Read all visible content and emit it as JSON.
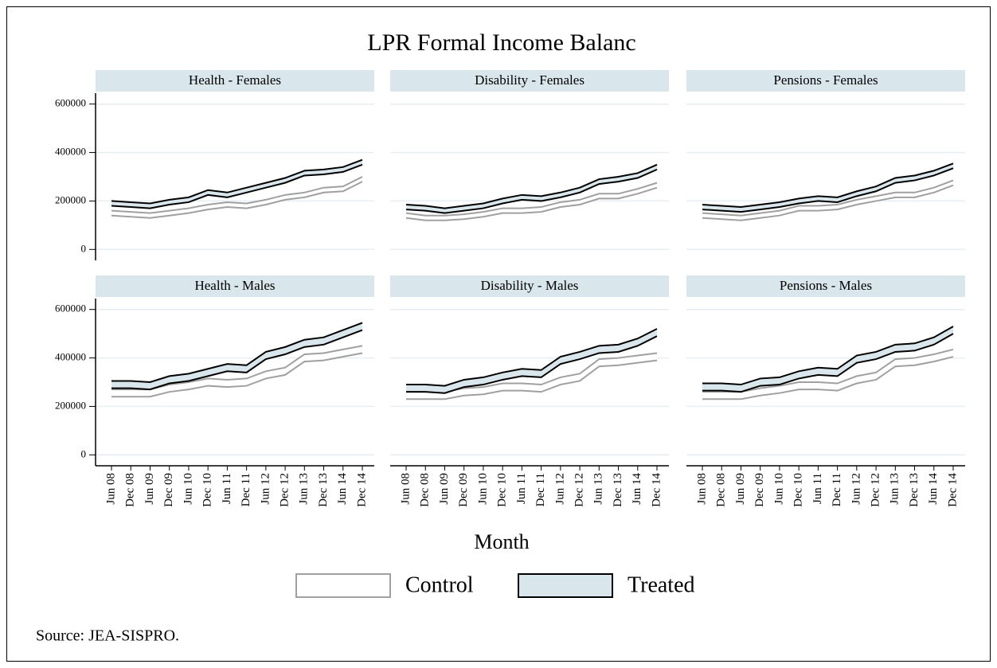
{
  "figure": {
    "title": "LPR Formal Income Balanc",
    "x_label": "Month",
    "source": "Source: JEA-SISPRO.",
    "categories": [
      "Jun 08",
      "Dec 08",
      "Jun 09",
      "Dec 09",
      "Jun 10",
      "Dec 10",
      "Jun 11",
      "Dec 11",
      "Jun 12",
      "Dec 12",
      "Jun 13",
      "Dec 13",
      "Jun 14",
      "Dec 14"
    ]
  },
  "chart_data": [
    {
      "type": "band",
      "title": "Health - Females",
      "ylim": [
        -45000,
        645000
      ],
      "yticks": [
        0,
        200000,
        400000,
        600000
      ],
      "grid": true,
      "series": [
        {
          "name": "Control",
          "color": "#a0a0a0",
          "fill": "#ffffff",
          "lower": [
            140000,
            135000,
            130000,
            140000,
            150000,
            165000,
            175000,
            170000,
            185000,
            205000,
            215000,
            235000,
            240000,
            280000
          ],
          "upper": [
            160000,
            155000,
            150000,
            160000,
            170000,
            185000,
            195000,
            190000,
            205000,
            225000,
            235000,
            255000,
            260000,
            300000
          ]
        },
        {
          "name": "Treated",
          "color": "#000000",
          "fill": "#d9e6ec",
          "lower": [
            180000,
            175000,
            170000,
            185000,
            195000,
            225000,
            215000,
            235000,
            255000,
            275000,
            305000,
            310000,
            320000,
            350000
          ],
          "upper": [
            200000,
            195000,
            190000,
            205000,
            215000,
            245000,
            235000,
            255000,
            275000,
            295000,
            325000,
            330000,
            340000,
            370000
          ]
        }
      ]
    },
    {
      "type": "band",
      "title": "Disability - Females",
      "ylim": [
        -45000,
        645000
      ],
      "yticks": [
        0,
        200000,
        400000,
        600000
      ],
      "grid": true,
      "series": [
        {
          "name": "Control",
          "color": "#a0a0a0",
          "fill": "#ffffff",
          "lower": [
            130000,
            120000,
            120000,
            125000,
            135000,
            150000,
            150000,
            155000,
            175000,
            185000,
            210000,
            210000,
            230000,
            255000
          ],
          "upper": [
            150000,
            140000,
            140000,
            145000,
            155000,
            170000,
            170000,
            175000,
            195000,
            205000,
            230000,
            230000,
            250000,
            275000
          ]
        },
        {
          "name": "Treated",
          "color": "#000000",
          "fill": "#d9e6ec",
          "lower": [
            165000,
            160000,
            150000,
            160000,
            170000,
            190000,
            205000,
            200000,
            215000,
            235000,
            270000,
            280000,
            295000,
            330000
          ],
          "upper": [
            185000,
            180000,
            170000,
            180000,
            190000,
            210000,
            225000,
            220000,
            235000,
            255000,
            290000,
            300000,
            315000,
            350000
          ]
        }
      ]
    },
    {
      "type": "band",
      "title": "Pensions - Females",
      "ylim": [
        -45000,
        645000
      ],
      "yticks": [
        0,
        200000,
        400000,
        600000
      ],
      "grid": true,
      "series": [
        {
          "name": "Control",
          "color": "#a0a0a0",
          "fill": "#ffffff",
          "lower": [
            130000,
            125000,
            120000,
            130000,
            140000,
            160000,
            160000,
            165000,
            185000,
            200000,
            215000,
            215000,
            235000,
            265000
          ],
          "upper": [
            150000,
            145000,
            140000,
            150000,
            160000,
            180000,
            180000,
            185000,
            205000,
            220000,
            235000,
            235000,
            255000,
            285000
          ]
        },
        {
          "name": "Treated",
          "color": "#000000",
          "fill": "#d9e6ec",
          "lower": [
            165000,
            160000,
            155000,
            165000,
            175000,
            190000,
            200000,
            195000,
            220000,
            240000,
            275000,
            285000,
            305000,
            335000
          ],
          "upper": [
            185000,
            180000,
            175000,
            185000,
            195000,
            210000,
            220000,
            215000,
            240000,
            260000,
            295000,
            305000,
            325000,
            355000
          ]
        }
      ]
    },
    {
      "type": "band",
      "title": "Health - Males",
      "ylim": [
        -45000,
        645000
      ],
      "yticks": [
        0,
        200000,
        400000,
        600000
      ],
      "grid": true,
      "series": [
        {
          "name": "Control",
          "color": "#a0a0a0",
          "fill": "#ffffff",
          "lower": [
            240000,
            240000,
            240000,
            260000,
            270000,
            285000,
            280000,
            285000,
            315000,
            330000,
            385000,
            390000,
            405000,
            420000
          ],
          "upper": [
            270000,
            270000,
            270000,
            290000,
            300000,
            315000,
            310000,
            315000,
            345000,
            360000,
            415000,
            420000,
            435000,
            450000
          ]
        },
        {
          "name": "Treated",
          "color": "#000000",
          "fill": "#d9e6ec",
          "lower": [
            275000,
            275000,
            270000,
            295000,
            305000,
            325000,
            345000,
            340000,
            395000,
            415000,
            445000,
            455000,
            485000,
            515000
          ],
          "upper": [
            305000,
            305000,
            300000,
            325000,
            335000,
            355000,
            375000,
            370000,
            425000,
            445000,
            475000,
            485000,
            515000,
            545000
          ]
        }
      ]
    },
    {
      "type": "band",
      "title": "Disability - Males",
      "ylim": [
        -45000,
        645000
      ],
      "yticks": [
        0,
        200000,
        400000,
        600000
      ],
      "grid": true,
      "series": [
        {
          "name": "Control",
          "color": "#a0a0a0",
          "fill": "#ffffff",
          "lower": [
            230000,
            230000,
            230000,
            245000,
            250000,
            265000,
            265000,
            260000,
            290000,
            305000,
            365000,
            370000,
            380000,
            390000
          ],
          "upper": [
            260000,
            260000,
            260000,
            275000,
            280000,
            295000,
            295000,
            290000,
            320000,
            335000,
            395000,
            400000,
            410000,
            420000
          ]
        },
        {
          "name": "Treated",
          "color": "#000000",
          "fill": "#d9e6ec",
          "lower": [
            260000,
            260000,
            255000,
            280000,
            290000,
            310000,
            325000,
            320000,
            375000,
            395000,
            420000,
            425000,
            450000,
            490000
          ],
          "upper": [
            290000,
            290000,
            285000,
            310000,
            320000,
            340000,
            355000,
            350000,
            405000,
            425000,
            450000,
            455000,
            480000,
            520000
          ]
        }
      ]
    },
    {
      "type": "band",
      "title": "Pensions - Males",
      "ylim": [
        -45000,
        645000
      ],
      "yticks": [
        0,
        200000,
        400000,
        600000
      ],
      "grid": true,
      "series": [
        {
          "name": "Control",
          "color": "#a0a0a0",
          "fill": "#ffffff",
          "lower": [
            230000,
            230000,
            230000,
            245000,
            255000,
            270000,
            270000,
            265000,
            295000,
            310000,
            365000,
            370000,
            385000,
            405000
          ],
          "upper": [
            260000,
            260000,
            260000,
            275000,
            285000,
            300000,
            300000,
            295000,
            325000,
            340000,
            395000,
            400000,
            415000,
            435000
          ]
        },
        {
          "name": "Treated",
          "color": "#000000",
          "fill": "#d9e6ec",
          "lower": [
            265000,
            265000,
            260000,
            285000,
            290000,
            315000,
            330000,
            325000,
            380000,
            395000,
            425000,
            430000,
            455000,
            500000
          ],
          "upper": [
            295000,
            295000,
            290000,
            315000,
            320000,
            345000,
            360000,
            355000,
            410000,
            425000,
            455000,
            460000,
            485000,
            530000
          ]
        }
      ]
    }
  ]
}
